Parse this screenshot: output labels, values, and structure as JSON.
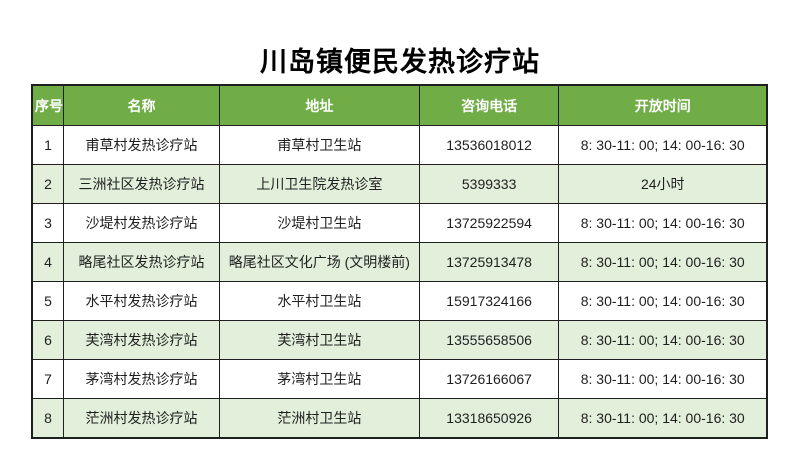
{
  "title": "川岛镇便民发热诊疗站",
  "table": {
    "headers": [
      "序号",
      "名称",
      "地址",
      "咨询电话",
      "开放时间"
    ],
    "column_keys": [
      "no",
      "name",
      "address",
      "phone",
      "hours"
    ],
    "rows": [
      [
        "1",
        "甫草村发热诊疗站",
        "甫草村卫生站",
        "13536018012",
        "8: 30-11: 00; 14: 00-16: 30"
      ],
      [
        "2",
        "三洲社区发热诊疗站",
        "上川卫生院发热诊室",
        "5399333",
        "24小时"
      ],
      [
        "3",
        "沙堤村发热诊疗站",
        "沙堤村卫生站",
        "13725922594",
        "8: 30-11: 00; 14: 00-16: 30"
      ],
      [
        "4",
        "略尾社区发热诊疗站",
        "略尾社区文化广场 (文明楼前)",
        "13725913478",
        "8: 30-11: 00; 14: 00-16: 30"
      ],
      [
        "5",
        "水平村发热诊疗站",
        "水平村卫生站",
        "15917324166",
        "8: 30-11: 00; 14: 00-16: 30"
      ],
      [
        "6",
        "芙湾村发热诊疗站",
        "芙湾村卫生站",
        "13555658506",
        "8: 30-11: 00; 14: 00-16: 30"
      ],
      [
        "7",
        "茅湾村发热诊疗站",
        "茅湾村卫生站",
        "13726166067",
        "8: 30-11: 00; 14: 00-16: 30"
      ],
      [
        "8",
        "茫洲村发热诊疗站",
        "茫洲村卫生站",
        "13318650926",
        "8: 30-11: 00; 14: 00-16: 30"
      ]
    ]
  },
  "colors": {
    "header_bg": "#70AD47",
    "header_text": "#FFFFFF",
    "row_bg": "#FFFFFF",
    "row_alt_bg": "#E2EFDA",
    "border": "#1F1F1F",
    "title_text": "#000000",
    "cell_text": "#1F1F1F"
  }
}
